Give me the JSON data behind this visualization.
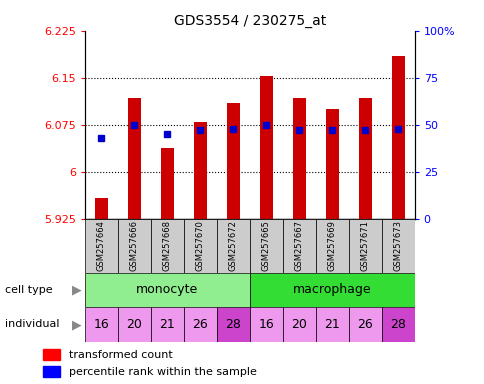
{
  "title": "GDS3554 / 230275_at",
  "samples": [
    "GSM257664",
    "GSM257666",
    "GSM257668",
    "GSM257670",
    "GSM257672",
    "GSM257665",
    "GSM257667",
    "GSM257669",
    "GSM257671",
    "GSM257673"
  ],
  "transformed_count": [
    5.958,
    6.118,
    6.038,
    6.08,
    6.11,
    6.153,
    6.118,
    6.1,
    6.118,
    6.185
  ],
  "percentile_rank": [
    43,
    50,
    45,
    47,
    48,
    50,
    47,
    47,
    47,
    48
  ],
  "ymin": 5.925,
  "ymax": 6.225,
  "yticks": [
    5.925,
    6.0,
    6.075,
    6.15,
    6.225
  ],
  "ytick_labels": [
    "5.925",
    "6",
    "6.075",
    "6.15",
    "6.225"
  ],
  "yright_ticks_pct": [
    0,
    25,
    50,
    75,
    100
  ],
  "yright_tick_labels": [
    "0",
    "25",
    "50",
    "75",
    "100%"
  ],
  "bar_color": "#cc0000",
  "dot_color": "#0000cc",
  "bar_bottom": 5.925,
  "monocyte_color": "#90ee90",
  "macrophage_color": "#33dd33",
  "sample_bg_color": "#cccccc",
  "indiv_light_color": "#ee99ee",
  "indiv_dark_color": "#cc44cc",
  "individuals": [
    16,
    20,
    21,
    26,
    28,
    16,
    20,
    21,
    26,
    28
  ],
  "indiv_dark_vals": [
    28
  ],
  "legend_red": "transformed count",
  "legend_blue": "percentile rank within the sample",
  "arrow_color": "#888888",
  "grid_color": "#000000"
}
